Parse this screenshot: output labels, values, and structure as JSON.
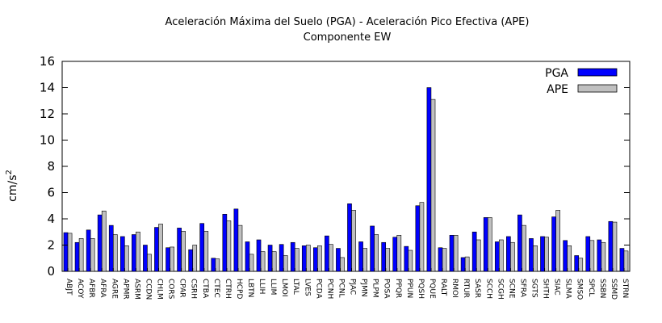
{
  "chart_data": {
    "type": "bar",
    "title": [
      "Aceleración Máxima del Suelo (PGA) -   Aceleración Pico Efectiva (APE)",
      "Componente EW"
    ],
    "xlabel": "",
    "ylabel": "cm/s",
    "ylabel_exponent": "2",
    "ylim": [
      0,
      16
    ],
    "yticks": [
      0,
      2,
      4,
      6,
      8,
      10,
      12,
      14,
      16
    ],
    "grid": false,
    "legend_position": "top-right",
    "categories": [
      "ABJT",
      "ACOY",
      "AFBR",
      "AFRA",
      "AGRE",
      "APMR",
      "ASRM",
      "CCDN",
      "CHLM",
      "CORS",
      "CPAR",
      "CSRH",
      "CTBA",
      "CTEC",
      "CTRH",
      "HCPD",
      "LBTN",
      "LLIH",
      "LLIM",
      "LMOI",
      "LTAL",
      "LVES",
      "PCDA",
      "PCNH",
      "PCNL",
      "PJAC",
      "PJMN",
      "PLPM",
      "POSA",
      "PPQR",
      "PPUN",
      "PQSH",
      "PQUE",
      "RALT",
      "RMOI",
      "RTUR",
      "SASR",
      "SCCH",
      "SCGH",
      "SCNE",
      "SFRA",
      "SGTS",
      "SHTH",
      "SIAC",
      "SLMA",
      "SMSO",
      "SPCL",
      "SSBN",
      "SSMD",
      "STRN"
    ],
    "series": [
      {
        "name": "PGA",
        "color": "#0000ff",
        "values": [
          2.95,
          2.2,
          3.15,
          4.3,
          3.5,
          2.65,
          2.8,
          2.0,
          3.35,
          1.8,
          3.3,
          1.65,
          3.65,
          1.0,
          4.35,
          4.75,
          2.25,
          2.4,
          2.0,
          2.05,
          2.2,
          1.95,
          1.8,
          2.7,
          1.75,
          5.15,
          2.25,
          3.45,
          2.2,
          2.6,
          1.9,
          5.0,
          14.0,
          1.8,
          2.75,
          1.05,
          3.0,
          4.1,
          2.25,
          2.65,
          4.3,
          2.5,
          2.65,
          4.15,
          2.35,
          1.2,
          2.65,
          2.4,
          3.8,
          1.75
        ]
      },
      {
        "name": "APE",
        "color": "#c0c0c0",
        "values": [
          2.9,
          2.5,
          2.5,
          4.6,
          2.8,
          1.95,
          3.0,
          1.3,
          3.6,
          1.85,
          3.05,
          2.0,
          3.05,
          0.95,
          3.85,
          3.5,
          1.3,
          1.5,
          1.5,
          1.2,
          1.75,
          2.0,
          1.95,
          2.05,
          1.05,
          4.65,
          1.75,
          2.8,
          1.75,
          2.75,
          1.6,
          5.25,
          13.1,
          1.75,
          2.75,
          1.1,
          2.4,
          4.1,
          2.4,
          2.2,
          3.5,
          1.95,
          2.6,
          4.65,
          1.95,
          1.0,
          2.35,
          2.2,
          3.75,
          1.55
        ]
      }
    ]
  }
}
